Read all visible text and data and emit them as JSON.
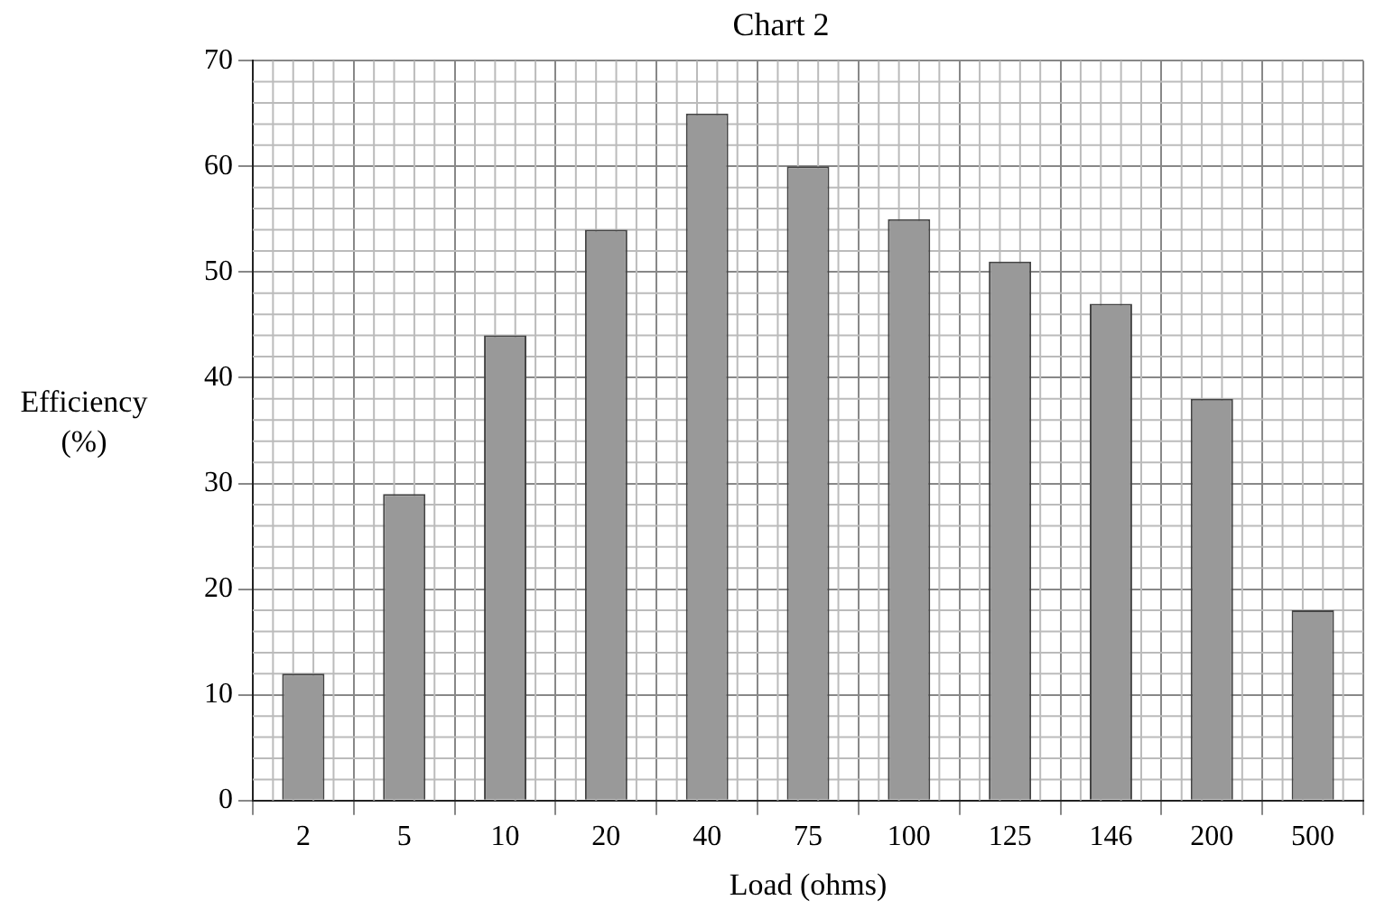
{
  "chart_data": {
    "type": "bar",
    "title": "Chart 2",
    "xlabel": "Load (ohms)",
    "ylabel": "Efficiency (%)",
    "categories": [
      "2",
      "5",
      "10",
      "20",
      "40",
      "75",
      "100",
      "125",
      "146",
      "200",
      "500"
    ],
    "values": [
      12,
      29,
      44,
      54,
      65,
      60,
      55,
      51,
      47,
      38,
      18
    ],
    "color": "#999999",
    "ylim": [
      0,
      70
    ],
    "yticks": [
      0,
      10,
      20,
      30,
      40,
      50,
      60,
      70
    ],
    "grid": true,
    "legend": false
  }
}
